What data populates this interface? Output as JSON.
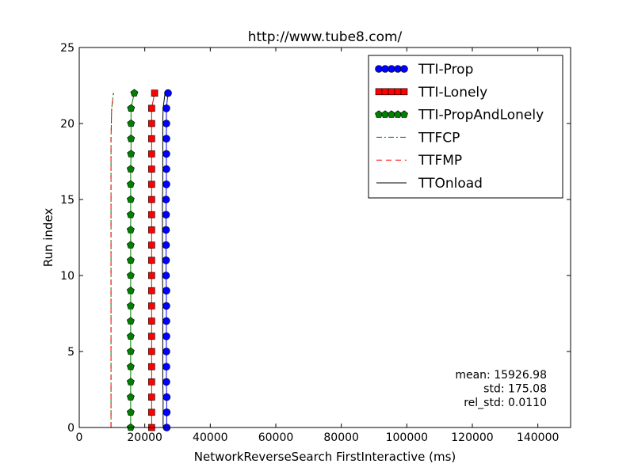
{
  "chart_data": {
    "type": "line",
    "title": "http://www.tube8.com/",
    "xlabel": "NetworkReverseSearch FirstInteractive (ms)",
    "ylabel": "Run index",
    "xlim": [
      0,
      150000
    ],
    "ylim": [
      0,
      25
    ],
    "xticks": [
      0,
      20000,
      40000,
      60000,
      80000,
      100000,
      120000,
      140000
    ],
    "xtick_labels": [
      "0",
      "20000",
      "40000",
      "60000",
      "80000",
      "100000",
      "120000",
      "140000"
    ],
    "yticks": [
      0,
      5,
      10,
      15,
      20,
      25
    ],
    "ytick_labels": [
      "0",
      "5",
      "10",
      "15",
      "20",
      "25"
    ],
    "grid": false,
    "legend_position": "top-right",
    "y": [
      0,
      1,
      2,
      3,
      4,
      5,
      6,
      7,
      8,
      9,
      10,
      11,
      12,
      13,
      14,
      15,
      16,
      17,
      18,
      19,
      20,
      21,
      22
    ],
    "series": [
      {
        "name": "TTI-Prop",
        "color": "#0000ff",
        "marker": "circle",
        "line": "solid",
        "x": [
          26700,
          26700,
          26700,
          26600,
          26600,
          26600,
          26600,
          26600,
          26600,
          26600,
          26500,
          26500,
          26500,
          26500,
          26500,
          26500,
          26600,
          26600,
          26600,
          26600,
          26600,
          26600,
          27100
        ]
      },
      {
        "name": "TTI-Lonely",
        "color": "#ff0000",
        "marker": "square",
        "line": "solid",
        "x": [
          22100,
          22100,
          22100,
          22100,
          22100,
          22100,
          22100,
          22100,
          22100,
          22100,
          22100,
          22100,
          22100,
          22100,
          22100,
          22100,
          22100,
          22100,
          22100,
          22100,
          22100,
          22100,
          23000
        ]
      },
      {
        "name": "TTI-PropAndLonely",
        "color": "#008000",
        "marker": "pentagon",
        "line": "solid",
        "x": [
          15700,
          15700,
          15700,
          15700,
          15700,
          15700,
          15700,
          15700,
          15700,
          15700,
          15700,
          15700,
          15700,
          15700,
          15700,
          15700,
          15700,
          15700,
          15800,
          15800,
          15800,
          15800,
          16800
        ]
      },
      {
        "name": "TTFCP",
        "color": "#008000",
        "marker": "none",
        "line": "dashdot",
        "x": [
          9700,
          9700,
          9700,
          9700,
          9700,
          9700,
          9700,
          9700,
          9700,
          9700,
          9700,
          9700,
          9700,
          9700,
          9700,
          9700,
          9700,
          9700,
          9700,
          9700,
          9800,
          9900,
          10400
        ]
      },
      {
        "name": "TTFMP",
        "color": "#ff0000",
        "marker": "none",
        "line": "dashed",
        "x": [
          9700,
          9700,
          9700,
          9700,
          9700,
          9700,
          9700,
          9700,
          9700,
          9700,
          9700,
          9700,
          9700,
          9700,
          9700,
          9700,
          9700,
          9700,
          9700,
          9700,
          9800,
          9900,
          10500
        ]
      },
      {
        "name": "TTOnload",
        "color": "#000000",
        "marker": "none",
        "line": "solid",
        "x": [
          25600,
          25600,
          25600,
          25500,
          25500,
          25500,
          25500,
          25500,
          25500,
          25500,
          25400,
          25400,
          25400,
          25400,
          25400,
          25400,
          25500,
          25500,
          25500,
          25500,
          25500,
          25600,
          26200
        ]
      }
    ],
    "annotation": [
      "mean: 15926.98",
      "std: 175.08",
      "rel_std: 0.0110"
    ]
  }
}
